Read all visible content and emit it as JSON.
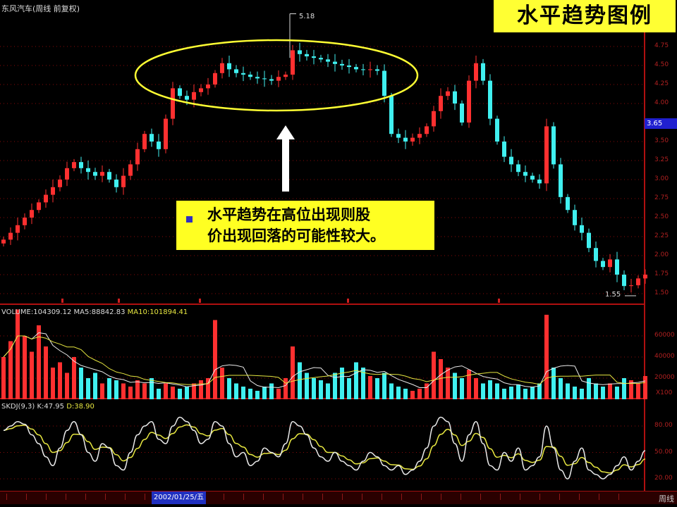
{
  "header": {
    "stock_title": "东风汽车(周线 前复权)",
    "diagram_title": "水平趋势图例"
  },
  "annotation": {
    "line1": "水平趋势在高位出现则股",
    "line2": "价出现回落的可能性较大。"
  },
  "price_panel": {
    "axis_ticks": [
      "4.75",
      "4.50",
      "4.25",
      "4.00",
      "3.50",
      "3.25",
      "3.00",
      "2.75",
      "2.50",
      "2.25",
      "2.00",
      "1.75",
      "1.50"
    ],
    "current_price": "3.65",
    "peak_label": "5.18",
    "low_label": "1.55"
  },
  "volume_panel": {
    "label": "VOLUME:104309.12",
    "ma5": "MA5:88842.83",
    "ma10": "MA10:101894.41",
    "axis_ticks": [
      "60000",
      "40000",
      "20000"
    ],
    "unit": "X100"
  },
  "kdj_panel": {
    "label": "SKDJ(9,3)",
    "k": "K:47.95",
    "d": "D:38.90",
    "axis_ticks": [
      "80.00",
      "50.00",
      "20.00"
    ]
  },
  "date_axis": {
    "highlight": "2002/01/25/五",
    "period": "周线"
  },
  "colors": {
    "up": "#ff3030",
    "down": "#40f0f0",
    "highlight": "#ffff33",
    "k_line": "#e8e8e8",
    "d_line": "#e6e640",
    "grid": "#8a0a0a"
  },
  "chart_data": {
    "type": "candlestick",
    "close": [
      2.21,
      2.3,
      2.4,
      2.5,
      2.6,
      2.7,
      2.8,
      2.9,
      3.0,
      3.15,
      3.23,
      3.15,
      3.1,
      3.05,
      3.1,
      3.0,
      2.9,
      3.05,
      3.2,
      3.4,
      3.6,
      3.5,
      3.4,
      3.8,
      4.2,
      4.1,
      4.05,
      4.15,
      4.2,
      4.25,
      4.4,
      4.53,
      4.45,
      4.4,
      4.38,
      4.35,
      4.33,
      4.32,
      4.3,
      4.35,
      4.38,
      4.7,
      4.65,
      4.62,
      4.6,
      4.58,
      4.55,
      4.52,
      4.5,
      4.48,
      4.45,
      4.44,
      4.45,
      4.43,
      4.1,
      3.6,
      3.55,
      3.5,
      3.55,
      3.6,
      3.7,
      3.9,
      4.1,
      4.16,
      4.0,
      3.75,
      4.3,
      4.53,
      4.3,
      3.8,
      3.5,
      3.3,
      3.2,
      3.1,
      3.05,
      3.0,
      2.95,
      3.7,
      3.2,
      2.77,
      2.6,
      2.4,
      2.3,
      2.1,
      1.93,
      1.85,
      1.95,
      1.75,
      1.6,
      1.61,
      1.7,
      1.75
    ],
    "volume": [
      40000,
      55000,
      85000,
      60000,
      45000,
      70000,
      50000,
      30000,
      35000,
      25000,
      40000,
      30000,
      20000,
      25000,
      15000,
      20000,
      18000,
      15000,
      12000,
      18000,
      15000,
      20000,
      10000,
      15000,
      12000,
      10000,
      12000,
      15000,
      18000,
      20000,
      75000,
      30000,
      20000,
      15000,
      12000,
      10000,
      8000,
      12000,
      15000,
      10000,
      20000,
      50000,
      35000,
      25000,
      20000,
      18000,
      15000,
      25000,
      30000,
      20000,
      35000,
      30000,
      22000,
      20000,
      25000,
      15000,
      12000,
      10000,
      8000,
      10000,
      15000,
      45000,
      38000,
      30000,
      25000,
      20000,
      28000,
      20000,
      15000,
      18000,
      15000,
      10000,
      12000,
      14000,
      10000,
      12000,
      15000,
      80000,
      30000,
      20000,
      15000,
      12000,
      10000,
      20000,
      15000,
      12000,
      15000,
      12000,
      20000,
      18000,
      15000,
      22000
    ],
    "k": [
      75,
      80,
      85,
      82,
      70,
      60,
      45,
      35,
      55,
      75,
      85,
      70,
      50,
      40,
      60,
      55,
      35,
      30,
      50,
      70,
      80,
      85,
      65,
      60,
      80,
      90,
      85,
      75,
      60,
      65,
      85,
      80,
      60,
      45,
      50,
      35,
      40,
      55,
      50,
      45,
      60,
      85,
      80,
      70,
      55,
      45,
      40,
      50,
      40,
      35,
      30,
      40,
      50,
      45,
      35,
      30,
      35,
      25,
      30,
      40,
      55,
      80,
      90,
      85,
      60,
      40,
      70,
      85,
      60,
      35,
      30,
      50,
      40,
      55,
      30,
      35,
      45,
      80,
      55,
      30,
      20,
      40,
      55,
      30,
      25,
      20,
      25,
      35,
      45,
      30,
      40,
      52
    ],
    "peak": 5.18,
    "low": 1.55
  }
}
